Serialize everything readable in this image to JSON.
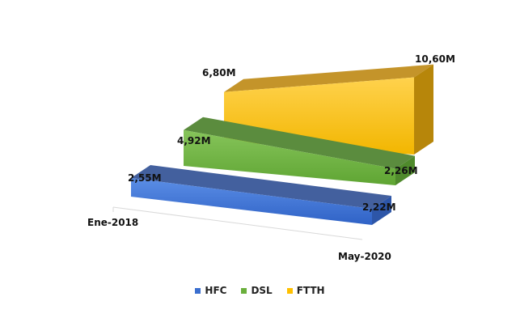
{
  "chart_data": {
    "type": "area",
    "subtype": "3d-area",
    "categories": [
      "Ene-2018",
      "May-2020"
    ],
    "series": [
      {
        "name": "HFC",
        "values": [
          2.55,
          2.22
        ],
        "labels": [
          "2,55M",
          "2,22M"
        ],
        "color": "#3b6fcf"
      },
      {
        "name": "DSL",
        "values": [
          4.92,
          2.26
        ],
        "labels": [
          "4,92M",
          "2,26M"
        ],
        "color": "#6aaf3c"
      },
      {
        "name": "FTTH",
        "values": [
          6.8,
          10.6
        ],
        "labels": [
          "6,80M",
          "10,60M"
        ],
        "color": "#ffc000"
      }
    ],
    "unit": "M",
    "legend_position": "bottom",
    "grid": false
  }
}
